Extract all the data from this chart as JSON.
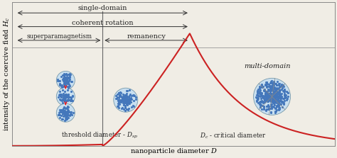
{
  "xlabel": "nanoparticle diameter $D$",
  "ylabel": "intensity of the coercive field $H_c$",
  "bg_color": "#f0ede5",
  "curve_color": "#cc2222",
  "line_color": "#444444",
  "text_color": "#222222",
  "D_sp": 0.28,
  "D_c": 0.55,
  "xlim": [
    0.0,
    1.0
  ],
  "ylim": [
    0.0,
    1.05
  ],
  "labels": {
    "single_domain": "single-domain",
    "coherent_rotation": "coherent rotation",
    "superparamagnetism": "superparamagnetism",
    "remanency": "remanency",
    "multi_domain": "multi-domain",
    "threshold": "threshold diameter - $D_{sp}$",
    "critical": "$D_c$ - critical diameter"
  },
  "fontsize_main": 7.0,
  "fontsize_small": 6.2
}
